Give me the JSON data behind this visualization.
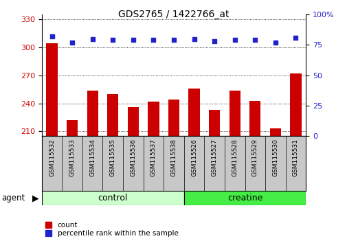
{
  "title": "GDS2765 / 1422766_at",
  "samples": [
    "GSM115532",
    "GSM115533",
    "GSM115534",
    "GSM115535",
    "GSM115536",
    "GSM115537",
    "GSM115538",
    "GSM115526",
    "GSM115527",
    "GSM115528",
    "GSM115529",
    "GSM115530",
    "GSM115531"
  ],
  "counts": [
    304,
    222,
    254,
    250,
    236,
    242,
    244,
    256,
    233,
    254,
    243,
    213,
    272
  ],
  "percentiles": [
    82,
    77,
    80,
    79,
    79,
    79,
    79,
    80,
    78,
    79,
    79,
    77,
    81
  ],
  "n_control": 7,
  "n_creatine": 6,
  "ylim_left": [
    205,
    335
  ],
  "ylim_right": [
    0,
    100
  ],
  "yticks_left": [
    210,
    240,
    270,
    300,
    330
  ],
  "yticks_right": [
    0,
    25,
    50,
    75,
    100
  ],
  "bar_color": "#cc0000",
  "dot_color": "#2222cc",
  "bar_width": 0.55,
  "control_color": "#ccffcc",
  "creatine_color": "#44ee44",
  "control_label": "control",
  "creatine_label": "creatine",
  "agent_label": "agent",
  "legend_count": "count",
  "legend_pct": "percentile rank within the sample",
  "background_color": "#ffffff",
  "tick_label_color_left": "#cc0000",
  "tick_label_color_right": "#2222cc",
  "xlabel_bg": "#c8c8c8"
}
